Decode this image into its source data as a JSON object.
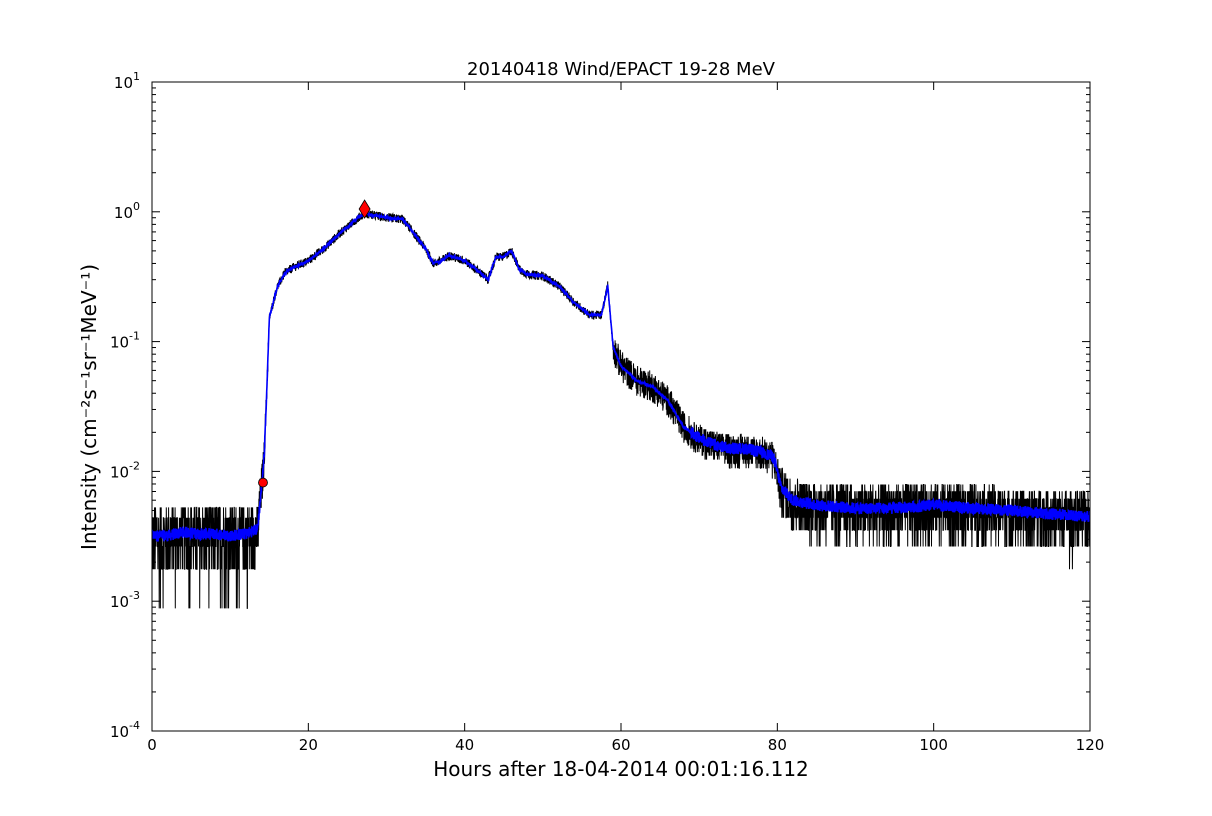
{
  "chart_data": {
    "type": "line",
    "title": "20140418 Wind/EPACT 19-28 MeV",
    "xlabel": "Hours after 18-04-2014 00:01:16.112",
    "ylabel": "Intensity (cm⁻²s⁻¹sr⁻¹MeV⁻¹)",
    "xlim": [
      0,
      120
    ],
    "ylim": [
      0.0001,
      10
    ],
    "yscale": "log",
    "x_ticks": [
      0,
      20,
      40,
      60,
      80,
      100,
      120
    ],
    "x_tick_labels": [
      "0",
      "20",
      "40",
      "60",
      "80",
      "100",
      "120"
    ],
    "y_tick_labels": [
      {
        "base": "10",
        "exp": "-4",
        "value": 0.0001
      },
      {
        "base": "10",
        "exp": "-3",
        "value": 0.001
      },
      {
        "base": "10",
        "exp": "-2",
        "value": 0.01
      },
      {
        "base": "10",
        "exp": "-1",
        "value": 0.1
      },
      {
        "base": "10",
        "exp": "0",
        "value": 1
      },
      {
        "base": "10",
        "exp": "1",
        "value": 10
      }
    ],
    "grid": false,
    "legend": "none",
    "series": [
      {
        "style": "raw",
        "color": "#000000",
        "profile": [
          [
            0,
            0.0032
          ],
          [
            2,
            0.0032
          ],
          [
            4,
            0.0034
          ],
          [
            6,
            0.0033
          ],
          [
            8,
            0.0033
          ],
          [
            10,
            0.0032
          ],
          [
            12,
            0.0033
          ],
          [
            13.5,
            0.0036
          ],
          [
            14.0,
            0.0075
          ],
          [
            14.3,
            0.012
          ],
          [
            14.6,
            0.03
          ],
          [
            15.0,
            0.15
          ],
          [
            15.5,
            0.2
          ],
          [
            16.0,
            0.26
          ],
          [
            17,
            0.34
          ],
          [
            18,
            0.37
          ],
          [
            20,
            0.42
          ],
          [
            22,
            0.52
          ],
          [
            24,
            0.68
          ],
          [
            26,
            0.86
          ],
          [
            27.2,
            0.98
          ],
          [
            28,
            0.95
          ],
          [
            30,
            0.9
          ],
          [
            32,
            0.88
          ],
          [
            33,
            0.75
          ],
          [
            34,
            0.62
          ],
          [
            35,
            0.52
          ],
          [
            36,
            0.4
          ],
          [
            37,
            0.42
          ],
          [
            38,
            0.46
          ],
          [
            40,
            0.42
          ],
          [
            42,
            0.34
          ],
          [
            43,
            0.3
          ],
          [
            44,
            0.45
          ],
          [
            45,
            0.45
          ],
          [
            46,
            0.5
          ],
          [
            47,
            0.36
          ],
          [
            48,
            0.33
          ],
          [
            50,
            0.32
          ],
          [
            52,
            0.27
          ],
          [
            54,
            0.2
          ],
          [
            56,
            0.16
          ],
          [
            57.5,
            0.16
          ],
          [
            58.3,
            0.27
          ],
          [
            59,
            0.09
          ],
          [
            60,
            0.065
          ],
          [
            62,
            0.05
          ],
          [
            64,
            0.045
          ],
          [
            66,
            0.035
          ],
          [
            67,
            0.028
          ],
          [
            68,
            0.022
          ],
          [
            70,
            0.018
          ],
          [
            72,
            0.016
          ],
          [
            74,
            0.015
          ],
          [
            76,
            0.015
          ],
          [
            78,
            0.014
          ],
          [
            79.5,
            0.013
          ],
          [
            80.5,
            0.0075
          ],
          [
            82,
            0.006
          ],
          [
            85,
            0.0055
          ],
          [
            90,
            0.0052
          ],
          [
            95,
            0.0052
          ],
          [
            100,
            0.0055
          ],
          [
            105,
            0.0052
          ],
          [
            110,
            0.005
          ],
          [
            115,
            0.0047
          ],
          [
            120,
            0.0045
          ]
        ],
        "detection_floor": 0.00088
      },
      {
        "style": "smoothed",
        "color": "#0000ff"
      }
    ],
    "markers": [
      {
        "label": "onset",
        "x": 14.2,
        "y": 0.0082,
        "shape": "circle",
        "color": "#ff0000"
      },
      {
        "label": "peak",
        "x": 27.2,
        "y": 1.05,
        "shape": "diamond",
        "color": "#ff0000"
      }
    ]
  }
}
